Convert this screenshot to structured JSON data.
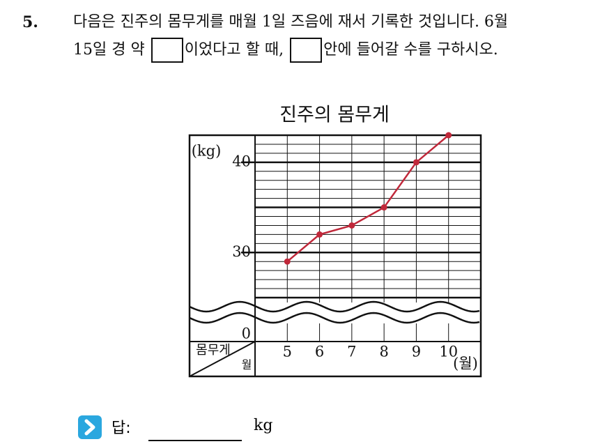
{
  "question": {
    "number": "5.",
    "text_1": "다음은 진주의 몸무게를 매월 1일 즈음에 재서 기록한 것입니다. 6월",
    "text_2": "15일 경 약",
    "text_3": "이었다고 할 때,",
    "text_4": "안에 들어갈 수를 구하시오."
  },
  "chart_data": {
    "type": "line",
    "title": "진주의 몸무게",
    "y_label": "(kg)",
    "x_label": "(월)",
    "corner_labels": [
      "몸무게",
      "월"
    ],
    "categories": [
      "5",
      "6",
      "7",
      "8",
      "9",
      "10"
    ],
    "values": [
      29,
      32,
      33,
      35,
      40,
      43
    ],
    "color": "#c0283a",
    "ylim": [
      25,
      43
    ],
    "yticks": [
      0,
      30,
      40
    ],
    "major_grid": [
      25,
      30,
      35,
      40
    ],
    "minor_grid": [
      26,
      27,
      28,
      29,
      31,
      32,
      33,
      34,
      36,
      37,
      38,
      39,
      41,
      42
    ],
    "axis_break": true
  },
  "answer": {
    "label": "답:",
    "unit": "kg"
  }
}
